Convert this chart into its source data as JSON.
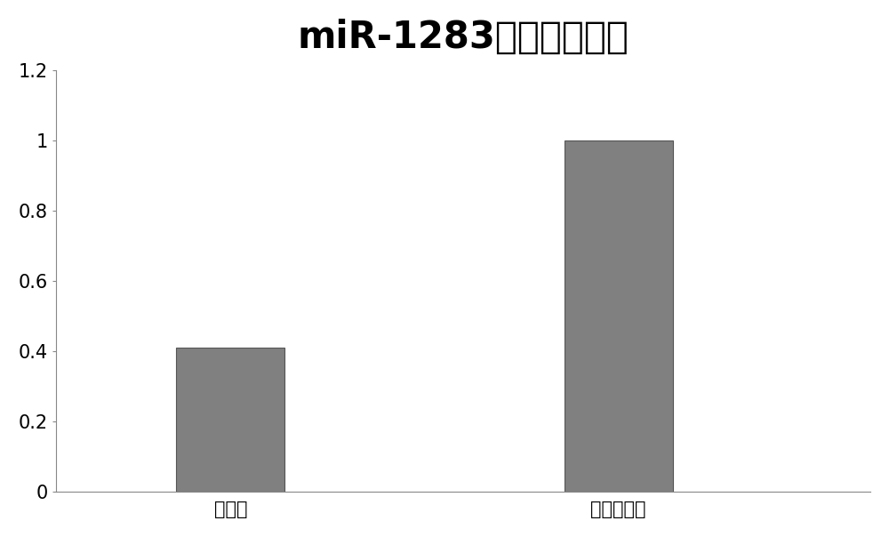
{
  "title": "miR-1283相对表达情况",
  "categories": [
    "患病组",
    "健康对照组"
  ],
  "values": [
    0.41,
    1.0
  ],
  "bar_color": "#808080",
  "ylim": [
    0,
    1.2
  ],
  "yticks": [
    0,
    0.2,
    0.4,
    0.6,
    0.8,
    1.0,
    1.2
  ],
  "ytick_labels": [
    "0",
    "0.2",
    "0.4",
    "0.6",
    "0.8",
    "1",
    "1.2"
  ],
  "title_fontsize": 30,
  "tick_fontsize": 15,
  "background_color": "#ffffff",
  "bar_width": 0.28
}
